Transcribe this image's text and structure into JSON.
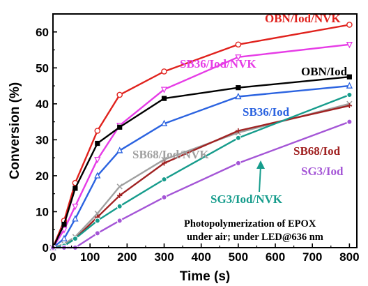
{
  "chart_data": {
    "type": "line",
    "title": "",
    "xlabel": "Time (s)",
    "ylabel": "Conversion (%)",
    "xlim": [
      0,
      820
    ],
    "ylim": [
      0,
      65
    ],
    "xticks": [
      0,
      100,
      200,
      300,
      400,
      500,
      600,
      700,
      800
    ],
    "yticks": [
      0,
      10,
      20,
      30,
      40,
      50,
      60
    ],
    "grid": false,
    "legend": "none",
    "annotation": [
      "Photopolymerization of EPOX",
      "under air; under LED@636 nm"
    ],
    "series": [
      {
        "name": "OBN/Iod/NVK",
        "color": "#e0211c",
        "marker": "circle-open",
        "x": [
          0,
          30,
          60,
          120,
          180,
          300,
          500,
          800
        ],
        "y": [
          0,
          7.5,
          18,
          32.5,
          42.5,
          49,
          56.5,
          62
        ]
      },
      {
        "name": "SB36/Iod/NVK",
        "color": "#e63ce6",
        "marker": "triangle-down-open",
        "x": [
          0,
          30,
          60,
          120,
          180,
          300,
          500,
          800
        ],
        "y": [
          0,
          5,
          11.5,
          24.5,
          34,
          44,
          53,
          56.5
        ]
      },
      {
        "name": "OBN/Iod",
        "color": "#000000",
        "marker": "square",
        "x": [
          0,
          30,
          60,
          120,
          180,
          300,
          500,
          800
        ],
        "y": [
          0,
          6.5,
          16.5,
          29,
          33.5,
          41.5,
          44.5,
          47.5
        ]
      },
      {
        "name": "SB36/Iod",
        "color": "#2b63e0",
        "marker": "triangle-up-open",
        "x": [
          0,
          30,
          60,
          120,
          180,
          300,
          500,
          800
        ],
        "y": [
          0,
          2.5,
          8,
          20,
          27,
          34.5,
          42,
          45
        ]
      },
      {
        "name": "SB68/Iod/NVK",
        "color": "#a0a0a0",
        "marker": "x",
        "x": [
          0,
          30,
          60,
          120,
          180,
          300,
          500,
          800
        ],
        "y": [
          0,
          1,
          3,
          9.5,
          17,
          24.5,
          32,
          40
        ]
      },
      {
        "name": "SB68/Iod",
        "color": "#a02222",
        "marker": "plus",
        "x": [
          0,
          30,
          60,
          120,
          180,
          300,
          500,
          800
        ],
        "y": [
          0,
          0.5,
          2.5,
          8.5,
          14.5,
          23.5,
          32.5,
          39.5
        ]
      },
      {
        "name": "SG3/Iod/NVK",
        "color": "#169c8c",
        "marker": "circle-half",
        "x": [
          0,
          30,
          60,
          120,
          180,
          300,
          500,
          800
        ],
        "y": [
          0,
          0.5,
          2.5,
          7.5,
          11.5,
          19,
          30.5,
          42.5
        ]
      },
      {
        "name": "SG3/Iod",
        "color": "#a455d6",
        "marker": "circle-half",
        "x": [
          0,
          30,
          60,
          120,
          180,
          300,
          500,
          800
        ],
        "y": [
          0,
          0,
          0,
          4,
          7.5,
          14,
          23.5,
          35
        ]
      }
    ]
  }
}
